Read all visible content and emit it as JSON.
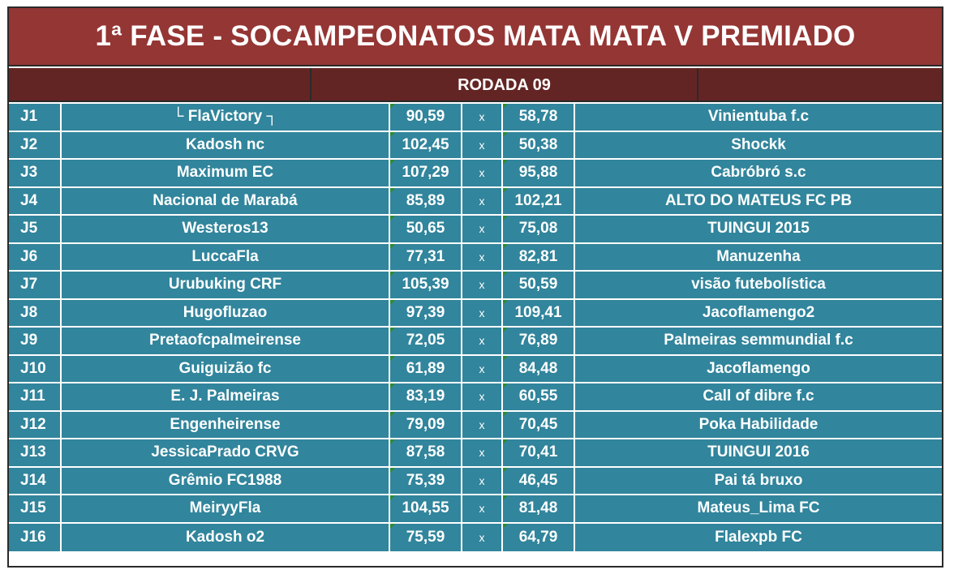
{
  "title": "1ª FASE - SOCAMPEONATOS MATA MATA V PREMIADO",
  "round_label": "RODADA 09",
  "separator": "x",
  "colors": {
    "title_bg": "#943634",
    "round_bg": "#632523",
    "cell_bg": "#31859c",
    "text": "#ffffff",
    "corner_marker": "#2e8b2e"
  },
  "matches": [
    {
      "id": "J1",
      "home": "└ FlaVictory ┐",
      "home_score": "90,59",
      "away_score": "58,78",
      "away": "Vinientuba f.c"
    },
    {
      "id": "J2",
      "home": "Kadosh nc",
      "home_score": "102,45",
      "away_score": "50,38",
      "away": "Shockk"
    },
    {
      "id": "J3",
      "home": "Maximum EC",
      "home_score": "107,29",
      "away_score": "95,88",
      "away": "Cabróbró s.c"
    },
    {
      "id": "J4",
      "home": "Nacional de Marabá",
      "home_score": "85,89",
      "away_score": "102,21",
      "away": "ALTO DO MATEUS FC PB"
    },
    {
      "id": "J5",
      "home": "Westeros13",
      "home_score": "50,65",
      "away_score": "75,08",
      "away": "TUINGUI 2015"
    },
    {
      "id": "J6",
      "home": "LuccaFla",
      "home_score": "77,31",
      "away_score": "82,81",
      "away": "Manuzenha"
    },
    {
      "id": "J7",
      "home": "Urubuking CRF",
      "home_score": "105,39",
      "away_score": "50,59",
      "away": "visão futebolística"
    },
    {
      "id": "J8",
      "home": "Hugofluzao",
      "home_score": "97,39",
      "away_score": "109,41",
      "away": "Jacoflamengo2"
    },
    {
      "id": "J9",
      "home": "Pretaofcpalmeirense",
      "home_score": "72,05",
      "away_score": "76,89",
      "away": "Palmeiras semmundial f.c"
    },
    {
      "id": "J10",
      "home": "Guiguizão fc",
      "home_score": "61,89",
      "away_score": "84,48",
      "away": "Jacoflamengo"
    },
    {
      "id": "J11",
      "home": "E. J. Palmeiras",
      "home_score": "83,19",
      "away_score": "60,55",
      "away": "Call of dibre f.c"
    },
    {
      "id": "J12",
      "home": "Engenheirense",
      "home_score": "79,09",
      "away_score": "70,45",
      "away": "Poka Habilidade"
    },
    {
      "id": "J13",
      "home": "JessicaPrado CRVG",
      "home_score": "87,58",
      "away_score": "70,41",
      "away": "TUINGUI 2016"
    },
    {
      "id": "J14",
      "home": "Grêmio FC1988",
      "home_score": "75,39",
      "away_score": "46,45",
      "away": "Pai tá bruxo"
    },
    {
      "id": "J15",
      "home": "MeiryyFla",
      "home_score": "104,55",
      "away_score": "81,48",
      "away": "Mateus_Lima FC"
    },
    {
      "id": "J16",
      "home": "Kadosh o2",
      "home_score": "75,59",
      "away_score": "64,79",
      "away": "Flalexpb FC"
    }
  ]
}
